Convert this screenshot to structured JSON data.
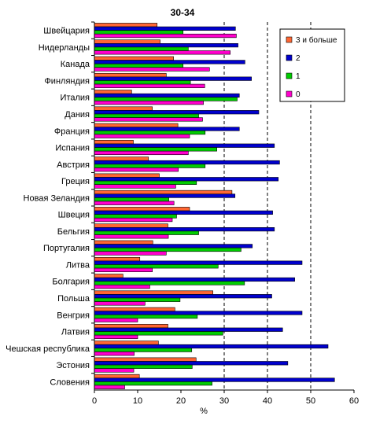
{
  "chart_data": {
    "type": "bar",
    "orientation": "horizontal",
    "title": "30-34",
    "xlabel": "%",
    "xlim": [
      0,
      60
    ],
    "xticks": [
      "0",
      "10",
      "20",
      "30",
      "40",
      "50",
      "60"
    ],
    "vertical_gridlines_dashed": [
      30,
      40,
      50
    ],
    "legend_position": "top-right",
    "categories": [
      "Швейцария",
      "Нидерланды",
      "Канада",
      "Финляндия",
      "Италия",
      "Дания",
      "Франция",
      "Испания",
      "Австрия",
      "Греция",
      "Новая Зеландия",
      "Швеция",
      "Бельгия",
      "Португалия",
      "Литва",
      "Болгария",
      "Польша",
      "Венгрия",
      "Латвия",
      "Чешская республика",
      "Эстония",
      "Словения"
    ],
    "series": [
      {
        "name": "3 и больше",
        "color": "#ff6633",
        "values": [
          14.5,
          15.2,
          18.3,
          16.6,
          8.6,
          13.4,
          19.3,
          9.0,
          12.5,
          15.0,
          31.8,
          22.0,
          17.0,
          13.5,
          10.5,
          6.6,
          27.4,
          18.6,
          17.0,
          14.8,
          23.5,
          10.4
        ]
      },
      {
        "name": "2",
        "color": "#0000cc",
        "values": [
          32.6,
          33.2,
          34.8,
          36.3,
          33.5,
          38.0,
          33.5,
          41.6,
          42.8,
          42.5,
          32.5,
          41.2,
          41.6,
          36.5,
          48.0,
          46.3,
          41.0,
          48.0,
          43.5,
          54.0,
          44.7,
          55.5
        ]
      },
      {
        "name": "1",
        "color": "#00cc00",
        "values": [
          20.5,
          21.7,
          20.5,
          22.2,
          33.0,
          24.1,
          25.6,
          28.3,
          25.6,
          23.6,
          17.2,
          19.0,
          24.1,
          33.9,
          28.6,
          34.7,
          19.8,
          23.8,
          29.7,
          22.5,
          22.6,
          27.2
        ]
      },
      {
        "name": "0",
        "color": "#ff00cc",
        "values": [
          32.8,
          31.4,
          26.6,
          25.5,
          25.2,
          25.0,
          22.0,
          21.7,
          19.4,
          18.8,
          18.4,
          18.0,
          17.1,
          16.6,
          13.4,
          12.8,
          11.7,
          10.0,
          10.0,
          9.2,
          9.1,
          7.0
        ]
      }
    ]
  }
}
